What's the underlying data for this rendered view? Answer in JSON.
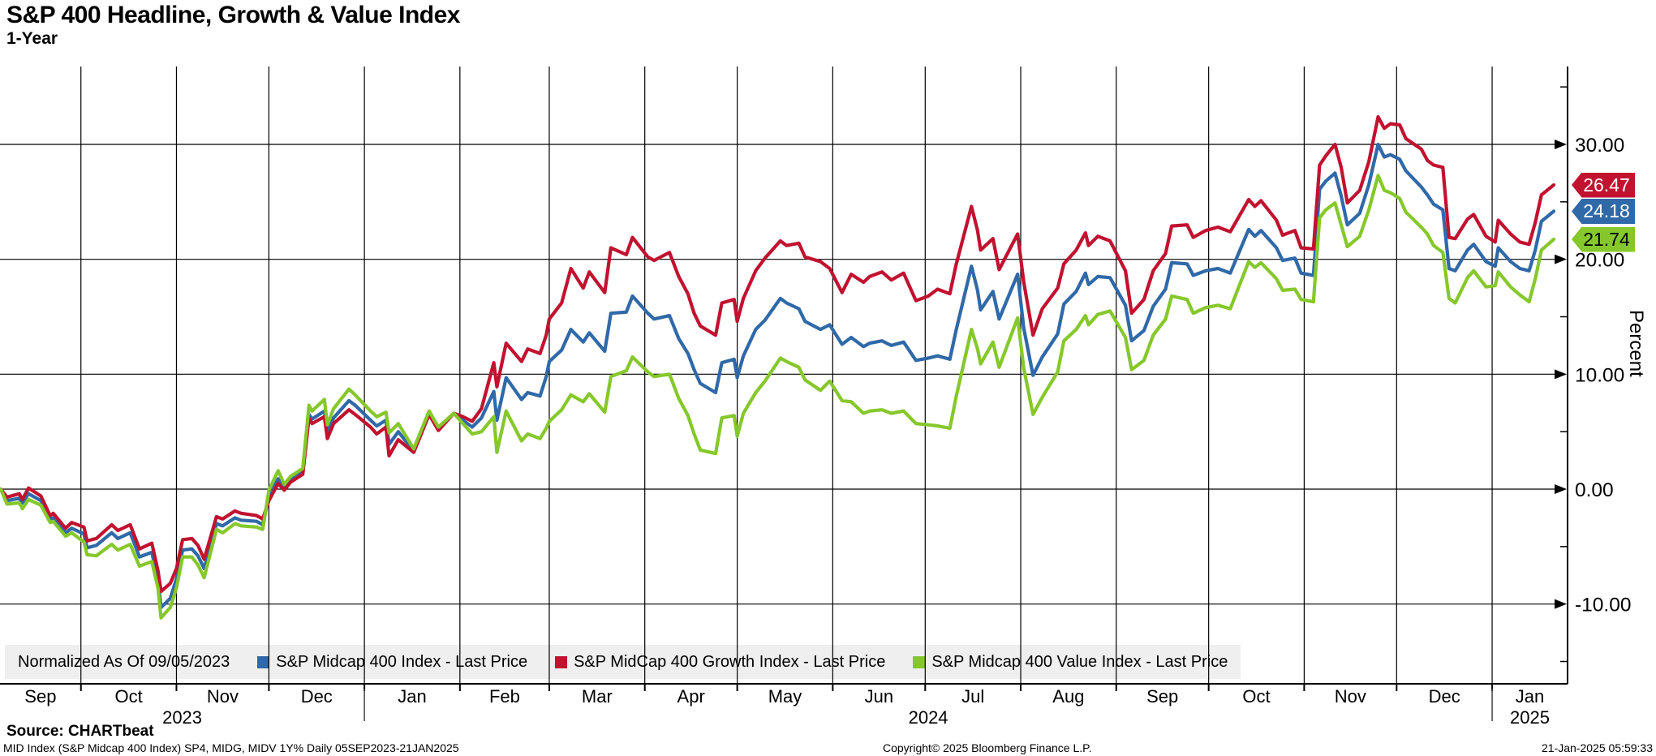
{
  "title": "S&P 400 Headline, Growth & Value Index",
  "subtitle": "1-Year",
  "legend": {
    "note": "Normalized As Of 09/05/2023"
  },
  "footer": {
    "source": "Source: CHARTbeat",
    "disclaimer": "MID Index (S&P Midcap 400 Index) SP4, MIDG, MIDV 1Y%  Daily 05SEP2023-21JAN2025",
    "copyright": "Copyright© 2025 Bloomberg Finance L.P.",
    "datetime": "21-Jan-2025 05:59:33"
  },
  "chart_data": {
    "type": "line",
    "title": "S&P 400 Headline, Growth & Value Index",
    "subtitle": "1-Year",
    "normalized_as_of": "09/05/2023",
    "grid": true,
    "y_axis": {
      "title": "Percent",
      "side": "right",
      "major_ticks": [
        {
          "label": "30.00",
          "value": 30
        },
        {
          "label": "20.00",
          "value": 20
        },
        {
          "label": "10.00",
          "value": 10
        },
        {
          "label": "0.00",
          "value": 0
        },
        {
          "label": "-10.00",
          "value": -10
        }
      ],
      "minor_tick_values": [
        35,
        25,
        15,
        5,
        -5,
        -15
      ],
      "ylim": [
        -16.9,
        36.8
      ]
    },
    "x_axis": {
      "start_date": "2023-09-05",
      "end_date": "2025-01-21",
      "month_labels": [
        "Sep",
        "Oct",
        "Nov",
        "Dec",
        "Jan",
        "Feb",
        "Mar",
        "Apr",
        "May",
        "Jun",
        "Jul",
        "Aug",
        "Sep",
        "Oct",
        "Nov",
        "Dec",
        "Jan"
      ],
      "year_labels": [
        "2023",
        "2024",
        "2025"
      ]
    },
    "columns": [
      "date",
      "index",
      "growth",
      "value"
    ],
    "series": [
      {
        "key": "index",
        "name": "S&P Midcap 400 Index - Last Price",
        "color": "#3069A8",
        "last_label": "24.18",
        "label_text_color": "#ffffff"
      },
      {
        "key": "growth",
        "name": "S&P MidCap 400 Growth Index - Last Price",
        "color": "#C11230",
        "last_label": "26.47",
        "label_text_color": "#ffffff"
      },
      {
        "key": "value",
        "name": "S&P Midcap 400 Value Index - Last Price",
        "color": "#86C82C",
        "last_label": "21.74",
        "label_text_color": "#000000"
      }
    ],
    "points": [
      [
        "2023-09-05",
        0,
        0,
        0
      ],
      [
        "2023-09-07",
        -1.0,
        -0.7,
        -1.3
      ],
      [
        "2023-09-11",
        -0.8,
        -0.4,
        -1.2
      ],
      [
        "2023-09-12",
        -1.2,
        -0.9,
        -1.7
      ],
      [
        "2023-09-14",
        -0.4,
        0.1,
        -0.9
      ],
      [
        "2023-09-18",
        -1.0,
        -0.6,
        -1.4
      ],
      [
        "2023-09-21",
        -2.6,
        -2.3,
        -2.9
      ],
      [
        "2023-09-22",
        -2.5,
        -2.1,
        -2.8
      ],
      [
        "2023-09-26",
        -3.8,
        -3.4,
        -4.1
      ],
      [
        "2023-09-28",
        -3.4,
        -2.9,
        -3.8
      ],
      [
        "2023-10-02",
        -3.9,
        -3.3,
        -4.6
      ],
      [
        "2023-10-03",
        -5.1,
        -4.5,
        -5.7
      ],
      [
        "2023-10-06",
        -4.9,
        -4.3,
        -5.8
      ],
      [
        "2023-10-11",
        -3.8,
        -3.1,
        -4.8
      ],
      [
        "2023-10-13",
        -4.3,
        -3.6,
        -5.3
      ],
      [
        "2023-10-17",
        -3.8,
        -3.1,
        -4.8
      ],
      [
        "2023-10-20",
        -5.9,
        -5.2,
        -6.7
      ],
      [
        "2023-10-24",
        -5.5,
        -4.7,
        -6.3
      ],
      [
        "2023-10-26",
        -7.9,
        -7.1,
        -8.6
      ],
      [
        "2023-10-27",
        -10.3,
        -8.9,
        -11.2
      ],
      [
        "2023-10-30",
        -9.5,
        -8.2,
        -10.3
      ],
      [
        "2023-11-01",
        -7.8,
        -6.9,
        -8.6
      ],
      [
        "2023-11-03",
        -5.3,
        -4.4,
        -5.9
      ],
      [
        "2023-11-06",
        -5.2,
        -4.3,
        -5.9
      ],
      [
        "2023-11-08",
        -5.8,
        -4.9,
        -6.6
      ],
      [
        "2023-11-10",
        -6.9,
        -6.1,
        -7.7
      ],
      [
        "2023-11-14",
        -3.0,
        -2.4,
        -3.5
      ],
      [
        "2023-11-16",
        -3.2,
        -2.6,
        -3.8
      ],
      [
        "2023-11-20",
        -2.5,
        -1.9,
        -3.0
      ],
      [
        "2023-11-22",
        -2.7,
        -2.1,
        -3.2
      ],
      [
        "2023-11-27",
        -2.8,
        -2.3,
        -3.3
      ],
      [
        "2023-11-29",
        -3.1,
        -2.6,
        -3.5
      ],
      [
        "2023-12-01",
        -0.6,
        -1.0,
        -0.1
      ],
      [
        "2023-12-04",
        0.9,
        0.5,
        1.6
      ],
      [
        "2023-12-06",
        0.1,
        -0.1,
        0.4
      ],
      [
        "2023-12-08",
        0.8,
        0.6,
        1.1
      ],
      [
        "2023-12-12",
        1.5,
        1.3,
        1.8
      ],
      [
        "2023-12-14",
        6.5,
        6.2,
        7.3
      ],
      [
        "2023-12-15",
        6.1,
        5.7,
        6.8
      ],
      [
        "2023-12-19",
        6.8,
        6.3,
        7.8
      ],
      [
        "2023-12-20",
        4.9,
        4.4,
        5.6
      ],
      [
        "2023-12-22",
        6.2,
        5.7,
        7.0
      ],
      [
        "2023-12-27",
        7.7,
        6.9,
        8.7
      ],
      [
        "2023-12-29",
        7.3,
        6.5,
        8.2
      ],
      [
        "2024-01-03",
        6.0,
        5.4,
        6.8
      ],
      [
        "2024-01-05",
        5.5,
        4.8,
        6.3
      ],
      [
        "2024-01-08",
        6.0,
        5.4,
        6.7
      ],
      [
        "2024-01-09",
        3.9,
        2.9,
        4.9
      ],
      [
        "2024-01-12",
        5.0,
        4.3,
        5.7
      ],
      [
        "2024-01-17",
        3.3,
        3.2,
        3.5
      ],
      [
        "2024-01-22",
        6.6,
        6.5,
        6.8
      ],
      [
        "2024-01-25",
        5.2,
        5.1,
        5.4
      ],
      [
        "2024-01-30",
        6.6,
        6.6,
        6.6
      ],
      [
        "2024-02-02",
        6.0,
        6.3,
        5.7
      ],
      [
        "2024-02-05",
        5.4,
        5.9,
        4.8
      ],
      [
        "2024-02-08",
        6.2,
        7.0,
        5.0
      ],
      [
        "2024-02-12",
        8.5,
        11.0,
        6.3
      ],
      [
        "2024-02-13",
        6.0,
        8.9,
        3.2
      ],
      [
        "2024-02-16",
        9.7,
        12.7,
        6.8
      ],
      [
        "2024-02-21",
        7.8,
        11.1,
        4.2
      ],
      [
        "2024-02-23",
        8.4,
        12.2,
        4.8
      ],
      [
        "2024-02-27",
        8.1,
        11.8,
        4.4
      ],
      [
        "2024-02-29",
        9.8,
        13.4,
        5.3
      ],
      [
        "2024-03-01",
        11.1,
        14.8,
        5.9
      ],
      [
        "2024-03-05",
        12.1,
        16.2,
        6.9
      ],
      [
        "2024-03-08",
        13.9,
        19.2,
        8.2
      ],
      [
        "2024-03-12",
        12.8,
        17.5,
        7.6
      ],
      [
        "2024-03-14",
        13.6,
        18.9,
        8.3
      ],
      [
        "2024-03-19",
        12.0,
        17.1,
        6.7
      ],
      [
        "2024-03-21",
        15.3,
        21.0,
        9.8
      ],
      [
        "2024-03-26",
        15.4,
        20.4,
        10.3
      ],
      [
        "2024-03-28",
        16.8,
        21.9,
        11.5
      ],
      [
        "2024-04-02",
        15.3,
        20.2,
        10.2
      ],
      [
        "2024-04-04",
        14.8,
        19.9,
        9.8
      ],
      [
        "2024-04-09",
        15.1,
        20.6,
        10.0
      ],
      [
        "2024-04-12",
        13.1,
        18.5,
        7.9
      ],
      [
        "2024-04-15",
        11.8,
        17.0,
        6.4
      ],
      [
        "2024-04-17",
        10.4,
        15.3,
        4.8
      ],
      [
        "2024-04-19",
        9.2,
        14.2,
        3.4
      ],
      [
        "2024-04-24",
        8.4,
        13.4,
        3.1
      ],
      [
        "2024-04-26",
        11.0,
        16.2,
        6.2
      ],
      [
        "2024-04-30",
        11.3,
        16.5,
        6.4
      ],
      [
        "2024-05-01",
        9.7,
        14.6,
        4.6
      ],
      [
        "2024-05-03",
        11.6,
        16.6,
        6.6
      ],
      [
        "2024-05-07",
        13.9,
        19.0,
        8.4
      ],
      [
        "2024-05-10",
        14.7,
        20.1,
        9.4
      ],
      [
        "2024-05-15",
        16.6,
        21.6,
        11.4
      ],
      [
        "2024-05-17",
        16.2,
        21.2,
        11.1
      ],
      [
        "2024-05-21",
        15.7,
        21.4,
        10.6
      ],
      [
        "2024-05-23",
        14.6,
        20.2,
        9.5
      ],
      [
        "2024-05-28",
        13.9,
        19.8,
        8.6
      ],
      [
        "2024-05-31",
        14.3,
        19.2,
        9.4
      ],
      [
        "2024-06-04",
        12.6,
        17.1,
        7.7
      ],
      [
        "2024-06-07",
        13.2,
        18.7,
        7.6
      ],
      [
        "2024-06-11",
        12.4,
        18.0,
        6.6
      ],
      [
        "2024-06-13",
        12.7,
        18.5,
        6.8
      ],
      [
        "2024-06-17",
        12.9,
        18.9,
        6.9
      ],
      [
        "2024-06-20",
        12.5,
        18.2,
        6.6
      ],
      [
        "2024-06-24",
        12.8,
        18.8,
        6.8
      ],
      [
        "2024-06-28",
        11.2,
        16.4,
        5.7
      ],
      [
        "2024-07-02",
        11.4,
        16.8,
        5.6
      ],
      [
        "2024-07-05",
        11.6,
        17.4,
        5.5
      ],
      [
        "2024-07-09",
        11.3,
        17.0,
        5.3
      ],
      [
        "2024-07-11",
        13.8,
        19.5,
        8.0
      ],
      [
        "2024-07-16",
        19.4,
        24.6,
        13.9
      ],
      [
        "2024-07-18",
        17.3,
        22.5,
        12.2
      ],
      [
        "2024-07-19",
        15.6,
        20.8,
        10.9
      ],
      [
        "2024-07-23",
        17.2,
        21.8,
        12.8
      ],
      [
        "2024-07-25",
        14.8,
        19.1,
        10.6
      ],
      [
        "2024-07-31",
        18.7,
        22.2,
        14.9
      ],
      [
        "2024-08-02",
        14.0,
        18.0,
        10.5
      ],
      [
        "2024-08-05",
        9.9,
        13.4,
        6.5
      ],
      [
        "2024-08-08",
        11.5,
        15.7,
        8.0
      ],
      [
        "2024-08-13",
        13.5,
        17.5,
        10.2
      ],
      [
        "2024-08-15",
        16.1,
        19.6,
        12.9
      ],
      [
        "2024-08-19",
        17.2,
        20.8,
        13.9
      ],
      [
        "2024-08-22",
        18.8,
        22.3,
        15.1
      ],
      [
        "2024-08-23",
        17.8,
        21.2,
        14.3
      ],
      [
        "2024-08-26",
        18.5,
        22.0,
        15.2
      ],
      [
        "2024-08-30",
        18.4,
        21.6,
        15.5
      ],
      [
        "2024-09-04",
        16.0,
        19.0,
        13.2
      ],
      [
        "2024-09-06",
        12.9,
        15.3,
        10.4
      ],
      [
        "2024-09-10",
        13.8,
        16.5,
        11.2
      ],
      [
        "2024-09-13",
        15.9,
        19.0,
        13.4
      ],
      [
        "2024-09-17",
        17.4,
        20.5,
        14.8
      ],
      [
        "2024-09-19",
        19.7,
        22.9,
        16.8
      ],
      [
        "2024-09-24",
        19.6,
        23.0,
        16.5
      ],
      [
        "2024-09-26",
        18.6,
        21.9,
        15.3
      ],
      [
        "2024-09-30",
        19.0,
        22.5,
        15.8
      ],
      [
        "2024-10-04",
        19.2,
        22.8,
        16.0
      ],
      [
        "2024-10-08",
        18.8,
        22.4,
        15.7
      ],
      [
        "2024-10-14",
        22.6,
        25.2,
        19.8
      ],
      [
        "2024-10-16",
        22.0,
        24.6,
        19.3
      ],
      [
        "2024-10-18",
        22.5,
        25.1,
        19.7
      ],
      [
        "2024-10-23",
        21.0,
        23.4,
        18.3
      ],
      [
        "2024-10-25",
        19.9,
        22.1,
        17.3
      ],
      [
        "2024-10-29",
        20.1,
        22.5,
        17.4
      ],
      [
        "2024-10-31",
        18.8,
        21.0,
        16.5
      ],
      [
        "2024-11-04",
        18.6,
        20.9,
        16.3
      ],
      [
        "2024-11-06",
        26.1,
        28.2,
        23.6
      ],
      [
        "2024-11-08",
        26.8,
        29.0,
        24.3
      ],
      [
        "2024-11-11",
        27.5,
        30.0,
        24.9
      ],
      [
        "2024-11-13",
        25.5,
        28.0,
        23.0
      ],
      [
        "2024-11-15",
        23.0,
        24.9,
        21.1
      ],
      [
        "2024-11-19",
        24.0,
        26.0,
        22.0
      ],
      [
        "2024-11-22",
        26.5,
        28.5,
        24.3
      ],
      [
        "2024-11-25",
        30.0,
        32.4,
        27.3
      ],
      [
        "2024-11-27",
        28.9,
        31.4,
        26.0
      ],
      [
        "2024-11-29",
        29.1,
        31.8,
        25.8
      ],
      [
        "2024-12-02",
        28.7,
        31.7,
        25.3
      ],
      [
        "2024-12-04",
        27.7,
        30.5,
        24.1
      ],
      [
        "2024-12-09",
        26.3,
        29.6,
        22.8
      ],
      [
        "2024-12-11",
        25.6,
        28.6,
        22.2
      ],
      [
        "2024-12-13",
        24.8,
        28.2,
        21.2
      ],
      [
        "2024-12-16",
        24.3,
        28.0,
        20.6
      ],
      [
        "2024-12-18",
        19.2,
        21.9,
        16.6
      ],
      [
        "2024-12-20",
        19.0,
        21.8,
        16.2
      ],
      [
        "2024-12-24",
        20.8,
        23.5,
        18.4
      ],
      [
        "2024-12-26",
        21.3,
        23.9,
        19.0
      ],
      [
        "2024-12-30",
        19.8,
        22.0,
        17.6
      ],
      [
        "2025-01-02",
        19.4,
        21.5,
        17.7
      ],
      [
        "2025-01-03",
        21.0,
        23.4,
        18.9
      ],
      [
        "2025-01-07",
        19.8,
        22.2,
        17.6
      ],
      [
        "2025-01-10",
        19.2,
        21.5,
        16.9
      ],
      [
        "2025-01-13",
        19.0,
        21.3,
        16.3
      ],
      [
        "2025-01-15",
        20.8,
        23.2,
        18.3
      ],
      [
        "2025-01-17",
        23.3,
        25.6,
        20.8
      ],
      [
        "2025-01-21",
        24.18,
        26.47,
        21.74
      ]
    ]
  }
}
